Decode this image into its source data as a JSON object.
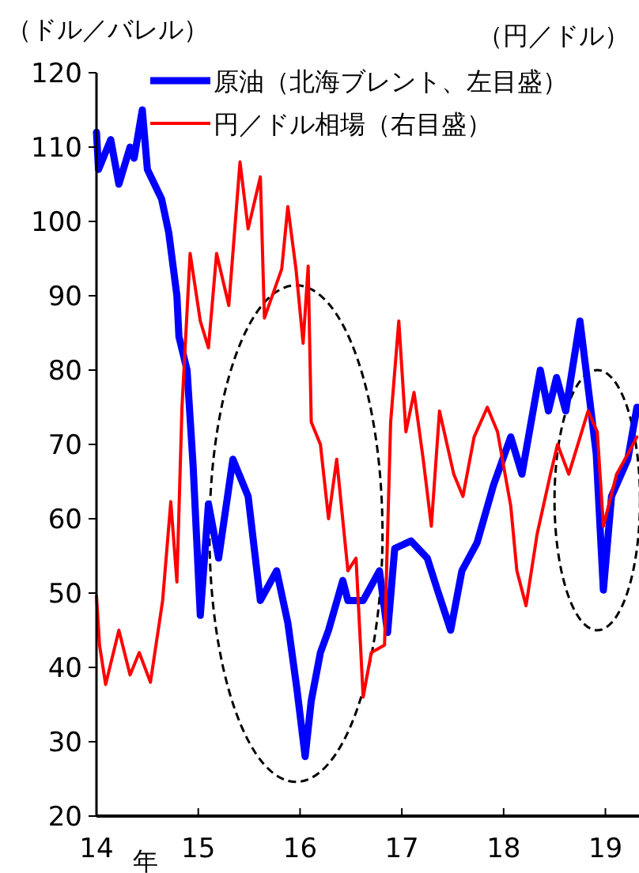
{
  "chart_data": {
    "type": "line",
    "title": null,
    "ylabel": "（ドル／バレル）",
    "y2label": "（円／ドル）",
    "xlabel": "年",
    "xlim": [
      14,
      19.33
    ],
    "xticks": [
      14,
      15,
      16,
      17,
      18,
      19
    ],
    "ylim": [
      20,
      120
    ],
    "yticks": [
      20,
      30,
      40,
      50,
      60,
      70,
      80,
      90,
      100,
      110,
      120
    ],
    "grid": false,
    "legend": "top right",
    "series": [
      {
        "name": "原油（北海ブレント、左目盛）",
        "color": "#0000ff",
        "x": [
          14.0,
          14.02,
          14.14,
          14.22,
          14.33,
          14.37,
          14.45,
          14.5,
          14.64,
          14.71,
          14.79,
          14.81,
          14.89,
          14.95,
          15.02,
          15.1,
          15.2,
          15.34,
          15.49,
          15.61,
          15.77,
          15.88,
          15.97,
          16.05,
          16.11,
          16.2,
          16.28,
          16.42,
          16.47,
          16.62,
          16.78,
          16.86,
          16.93,
          17.09,
          17.25,
          17.35,
          17.48,
          17.59,
          17.74,
          17.9,
          18.07,
          18.18,
          18.36,
          18.44,
          18.52,
          18.61,
          18.75,
          18.84,
          18.91,
          18.98,
          19.06,
          19.22,
          19.31
        ],
        "values": [
          112,
          107,
          111,
          105,
          110,
          108.5,
          115,
          107,
          103,
          98.5,
          90,
          84.5,
          80,
          67,
          47,
          62,
          54.7,
          68,
          63,
          49,
          53,
          46,
          37,
          28,
          35.5,
          42,
          45,
          51.7,
          49,
          49,
          53,
          44.7,
          56,
          57,
          54.7,
          50.4,
          45,
          53,
          56.8,
          64.5,
          71,
          66,
          80,
          74.5,
          79,
          74.5,
          86.6,
          76.6,
          68.7,
          50.4,
          63,
          68,
          75
        ]
      },
      {
        "name": "円／ドル相場（右目盛）",
        "color": "#ff0000",
        "x": [
          14.0,
          14.03,
          14.09,
          14.22,
          14.33,
          14.42,
          14.53,
          14.65,
          14.73,
          14.79,
          14.84,
          14.92,
          15.02,
          15.1,
          15.18,
          15.3,
          15.41,
          15.49,
          15.61,
          15.65,
          15.82,
          15.88,
          15.96,
          16.03,
          16.08,
          16.11,
          16.2,
          16.28,
          16.36,
          16.47,
          16.55,
          16.62,
          16.7,
          16.83,
          16.89,
          16.97,
          17.04,
          17.12,
          17.21,
          17.29,
          17.37,
          17.51,
          17.6,
          17.71,
          17.84,
          17.94,
          18.07,
          18.13,
          18.22,
          18.33,
          18.46,
          18.53,
          18.64,
          18.83,
          18.92,
          18.98,
          19.11,
          19.22,
          19.31
        ],
        "values": [
          49.6,
          43,
          37.7,
          45,
          39,
          42,
          38,
          49,
          62.3,
          51.5,
          75,
          95.7,
          86.6,
          83,
          95.7,
          88.7,
          108,
          99,
          106,
          87,
          93.6,
          102,
          93.6,
          83.6,
          94,
          73,
          70,
          60,
          68,
          53,
          54.7,
          36,
          42,
          43,
          73,
          86.6,
          71.7,
          77,
          68,
          59,
          74.5,
          66,
          63,
          71,
          75,
          71.7,
          61.7,
          53,
          48.3,
          58,
          66,
          70,
          66,
          74.5,
          71.7,
          59,
          66,
          68.7,
          71
        ]
      }
    ]
  }
}
